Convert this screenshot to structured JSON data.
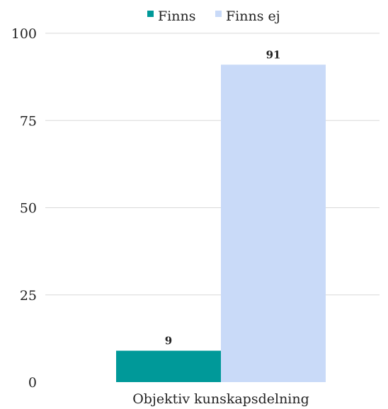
{
  "chart_data": {
    "type": "bar",
    "categories": [
      "Objektiv kunskapsdelning"
    ],
    "series": [
      {
        "name": "Finns",
        "values": [
          9
        ],
        "color": "#009999"
      },
      {
        "name": "Finns ej",
        "values": [
          91
        ],
        "color": "#c9daf8"
      }
    ],
    "ylim": [
      0,
      100
    ],
    "yticks": [
      0,
      25,
      50,
      75,
      100
    ],
    "grid": true,
    "legend_position": "top-center",
    "data_labels": true
  }
}
